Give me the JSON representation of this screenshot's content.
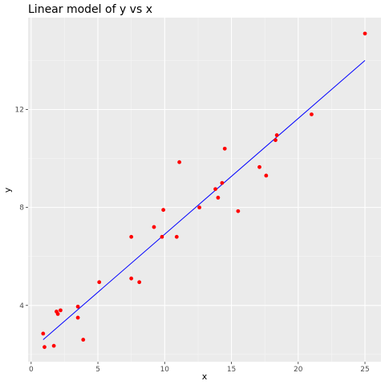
{
  "chart_data": {
    "type": "scatter",
    "title": "Linear model of y vs x",
    "xlabel": "x",
    "ylabel": "y",
    "xlim": [
      -0.23,
      26.2
    ],
    "ylim": [
      1.7,
      15.75
    ],
    "x_ticks": [
      0,
      5,
      10,
      15,
      20,
      25
    ],
    "y_ticks": [
      4,
      8,
      12
    ],
    "grid": true,
    "legend": "none",
    "series": [
      {
        "type": "scatter",
        "points": [
          {
            "x": 0.9,
            "y": 2.85
          },
          {
            "x": 1.0,
            "y": 2.3
          },
          {
            "x": 1.7,
            "y": 2.35
          },
          {
            "x": 1.9,
            "y": 3.75
          },
          {
            "x": 2.0,
            "y": 3.65
          },
          {
            "x": 2.2,
            "y": 3.8
          },
          {
            "x": 3.5,
            "y": 3.95
          },
          {
            "x": 3.5,
            "y": 3.5
          },
          {
            "x": 3.9,
            "y": 2.6
          },
          {
            "x": 5.1,
            "y": 4.95
          },
          {
            "x": 7.5,
            "y": 6.8
          },
          {
            "x": 7.5,
            "y": 5.1
          },
          {
            "x": 8.1,
            "y": 4.95
          },
          {
            "x": 9.2,
            "y": 7.2
          },
          {
            "x": 9.8,
            "y": 6.8
          },
          {
            "x": 9.9,
            "y": 7.9
          },
          {
            "x": 10.9,
            "y": 6.8
          },
          {
            "x": 11.1,
            "y": 9.85
          },
          {
            "x": 12.6,
            "y": 8.0
          },
          {
            "x": 13.8,
            "y": 8.75
          },
          {
            "x": 14.0,
            "y": 8.4
          },
          {
            "x": 14.3,
            "y": 9.0
          },
          {
            "x": 14.5,
            "y": 10.4
          },
          {
            "x": 15.5,
            "y": 7.85
          },
          {
            "x": 17.1,
            "y": 9.65
          },
          {
            "x": 17.6,
            "y": 9.3
          },
          {
            "x": 18.3,
            "y": 10.75
          },
          {
            "x": 18.4,
            "y": 10.95
          },
          {
            "x": 21.0,
            "y": 11.8
          },
          {
            "x": 25.0,
            "y": 15.1
          }
        ]
      },
      {
        "type": "line",
        "points": [
          {
            "x": 0.9,
            "y": 2.6
          },
          {
            "x": 25.0,
            "y": 14.0
          }
        ]
      }
    ]
  },
  "colors": {
    "panel": "#ebebeb",
    "grid_major": "#ffffff",
    "grid_minor": "#f5f5f5",
    "points": "#ff0000",
    "fit_line": "#0000ff",
    "tick_text": "#4d4d4d",
    "ticks": "#333333"
  }
}
